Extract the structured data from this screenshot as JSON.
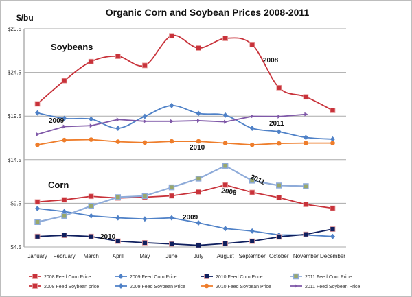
{
  "chart_data": {
    "type": "line",
    "title": "Organic Corn and Soybean Prices 2008-2011",
    "ylabel": "$/bu",
    "ylim": [
      4.5,
      29.5
    ],
    "yticks": [
      "$4.5",
      "$9.5",
      "$14.5",
      "$19.5",
      "$24.5",
      "$29.5"
    ],
    "ytick_values": [
      4.5,
      9.5,
      14.5,
      19.5,
      24.5,
      29.5
    ],
    "grid": true,
    "legend_position": "bottom",
    "categories": [
      "January",
      "February",
      "March",
      "April",
      "May",
      "June",
      "July",
      "August",
      "September",
      "October",
      "November",
      "December"
    ],
    "annotations": {
      "soybeans": "Soybeans",
      "corn": "Corn",
      "soy_2008": "2008",
      "soy_2009": "2009",
      "soy_2010": "2010",
      "soy_2011": "2011",
      "corn_2008": "2008",
      "corn_2009": "2009",
      "corn_2010": "2010",
      "corn_2011": "2011"
    },
    "series": [
      {
        "name": "2008 Feed Corn Price",
        "color": "#c8323a",
        "marker": "square",
        "smooth": false,
        "values": [
          9.66,
          9.9,
          10.3,
          10.1,
          10.2,
          10.36,
          10.8,
          11.6,
          10.75,
          10.15,
          9.37,
          8.93
        ]
      },
      {
        "name": "2009 Feed Corn Price",
        "color": "#4f81c7",
        "marker": "diamond",
        "smooth": false,
        "values": [
          8.9,
          8.56,
          8.06,
          7.83,
          7.7,
          7.83,
          7.25,
          6.6,
          6.32,
          5.87,
          5.87,
          5.7
        ]
      },
      {
        "name": "2010 Feed Corn Price",
        "color": "#0f1f5e",
        "marker": "square",
        "smooth": false,
        "values": [
          5.7,
          5.83,
          5.7,
          5.16,
          4.98,
          4.84,
          4.68,
          4.89,
          5.16,
          5.65,
          5.94,
          6.54
        ]
      },
      {
        "name": "2011 Feed Corn Price",
        "color": "#8eabd9",
        "marker": "square-olive",
        "smooth": false,
        "values": [
          7.35,
          8.06,
          9.2,
          10.2,
          10.34,
          11.33,
          12.33,
          13.8,
          12.1,
          11.54,
          11.46,
          null
        ]
      },
      {
        "name": "2008 Feed Soybean price",
        "color": "#c8323a",
        "marker": "square",
        "smooth": true,
        "values": [
          20.9,
          23.55,
          25.75,
          26.35,
          25.3,
          28.7,
          27.3,
          28.4,
          27.7,
          22.75,
          21.7,
          20.15
        ]
      },
      {
        "name": "2009 Feed Soybean Price",
        "color": "#4f81c7",
        "marker": "diamond",
        "smooth": true,
        "values": [
          19.86,
          19.23,
          19.15,
          18.1,
          19.47,
          20.7,
          19.8,
          19.6,
          18.1,
          17.7,
          17.05,
          16.85
        ]
      },
      {
        "name": "2010 Feed Soybean Price",
        "color": "#ee7d2b",
        "marker": "circle",
        "smooth": false,
        "values": [
          16.2,
          16.75,
          16.8,
          16.56,
          16.46,
          16.6,
          16.6,
          16.4,
          16.2,
          16.36,
          16.4,
          16.4
        ]
      },
      {
        "name": "2011 Feed Soybean Price",
        "color": "#7f58a8",
        "marker": "arrow",
        "smooth": false,
        "values": [
          17.4,
          18.3,
          18.4,
          19.1,
          18.9,
          18.9,
          18.97,
          18.84,
          19.47,
          19.45,
          19.7,
          null
        ]
      }
    ]
  }
}
